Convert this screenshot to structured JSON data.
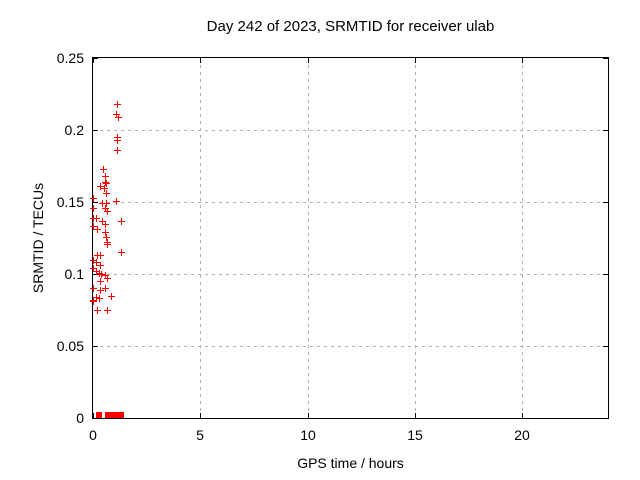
{
  "colors": {
    "marker": "#ff0000",
    "grid": "#b0b0b0",
    "axis": "#000000",
    "background": "#ffffff"
  },
  "chart_data": {
    "type": "scatter",
    "title": "Day 242 of 2023, SRMTID for receiver ulab",
    "xlabel": "GPS time / hours",
    "ylabel": "SRMTID / TECUs",
    "xlim": [
      0,
      24
    ],
    "ylim": [
      0,
      0.25
    ],
    "grid": true,
    "legend": "none",
    "marker_style": "plus",
    "xticks": [
      {
        "v": 0,
        "label": "0"
      },
      {
        "v": 5,
        "label": "5"
      },
      {
        "v": 10,
        "label": "10"
      },
      {
        "v": 15,
        "label": "15"
      },
      {
        "v": 20,
        "label": "20"
      }
    ],
    "yticks": [
      {
        "v": 0,
        "label": "0"
      },
      {
        "v": 0.05,
        "label": "0.05"
      },
      {
        "v": 0.1,
        "label": "0.1"
      },
      {
        "v": 0.15,
        "label": "0.15"
      },
      {
        "v": 0.2,
        "label": "0.2"
      },
      {
        "v": 0.25,
        "label": "0.25"
      }
    ],
    "series": [
      {
        "name": "SRMTID",
        "color": "#ff0000",
        "points": [
          [
            1.11,
            0.218
          ],
          [
            1.07,
            0.211
          ],
          [
            1.16,
            0.209
          ],
          [
            1.11,
            0.195
          ],
          [
            1.11,
            0.193
          ],
          [
            1.11,
            0.186
          ],
          [
            0.46,
            0.173
          ],
          [
            0.56,
            0.168
          ],
          [
            0.56,
            0.164
          ],
          [
            0.6,
            0.163
          ],
          [
            0.32,
            0.161
          ],
          [
            0.51,
            0.16
          ],
          [
            0.6,
            0.156
          ],
          [
            0.0,
            0.153
          ],
          [
            1.07,
            0.151
          ],
          [
            0.42,
            0.149
          ],
          [
            0.6,
            0.149
          ],
          [
            0.0,
            0.146
          ],
          [
            0.56,
            0.146
          ],
          [
            0.65,
            0.144
          ],
          [
            0.0,
            0.139
          ],
          [
            0.14,
            0.139
          ],
          [
            0.42,
            0.137
          ],
          [
            1.3,
            0.137
          ],
          [
            0.56,
            0.135
          ],
          [
            0.0,
            0.133
          ],
          [
            0.19,
            0.131
          ],
          [
            0.56,
            0.129
          ],
          [
            0.6,
            0.126
          ],
          [
            0.65,
            0.122
          ],
          [
            0.65,
            0.121
          ],
          [
            1.3,
            0.115
          ],
          [
            0.19,
            0.113
          ],
          [
            0.32,
            0.113
          ],
          [
            0.0,
            0.11
          ],
          [
            0.14,
            0.108
          ],
          [
            0.32,
            0.106
          ],
          [
            0.0,
            0.104
          ],
          [
            0.14,
            0.102
          ],
          [
            0.28,
            0.101
          ],
          [
            0.37,
            0.1
          ],
          [
            0.56,
            0.099
          ],
          [
            0.65,
            0.097
          ],
          [
            0.32,
            0.095
          ],
          [
            0.0,
            0.09
          ],
          [
            0.56,
            0.09
          ],
          [
            0.32,
            0.089
          ],
          [
            0.84,
            0.085
          ],
          [
            0.14,
            0.084
          ],
          [
            0.28,
            0.083
          ],
          [
            0.0,
            0.082
          ],
          [
            0.0,
            0.081
          ],
          [
            0.19,
            0.075
          ],
          [
            0.65,
            0.075
          ]
        ],
        "zero_points_x": [
          0.21,
          0.3,
          0.63,
          0.7,
          0.77,
          0.84,
          0.91,
          0.98,
          1.05,
          1.3
        ]
      }
    ]
  }
}
